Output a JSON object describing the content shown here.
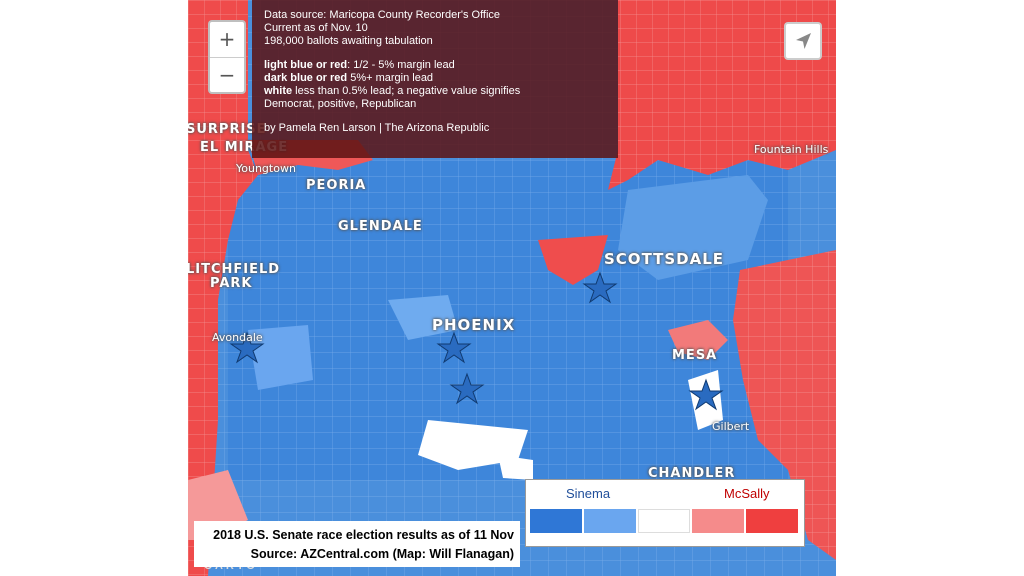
{
  "map": {
    "zoom_in_label": "+",
    "zoom_out_label": "−",
    "locate_icon": "navigation-arrow-icon",
    "attribution": "CARTO",
    "colors": {
      "dark_blue": "#2f77d6",
      "light_blue": "#6aa6ef",
      "white": "#ffffff",
      "light_red": "#f58b8b",
      "dark_red": "#ef3f3f",
      "star": "#2a6bc0"
    },
    "cities": {
      "surprise": "SURPRISE",
      "el_mirage": "EL MIRAGE",
      "youngtown": "Youngtown",
      "peoria": "PEORIA",
      "glendale": "GLENDALE",
      "litchfield": "LITCHFIELD",
      "park": "PARK",
      "avondale": "Avondale",
      "phoenix": "PHOENIX",
      "scottsdale": "SCOTTSDALE",
      "fountain_hills": "Fountain Hills",
      "mesa": "MESA",
      "gilbert": "Gilbert",
      "chandler": "CHANDLER"
    }
  },
  "info": {
    "line1": "Data source: Maricopa County Recorder's Office",
    "line2": "Current as of Nov. 10",
    "line3": "198,000 ballots awaiting tabulation",
    "light_bold": "light blue or red",
    "light_text": ": 1/2 - 5% margin lead",
    "dark_bold": "dark blue or red",
    "dark_text": " 5%+ margin lead",
    "white_bold": "white",
    "white_text": " less than 0.5% lead; a negative value signifies",
    "line7": "Democrat, positive, Republican",
    "byline": "by Pamela Ren Larson | The Arizona Republic"
  },
  "legend": {
    "left_label": "Sinema",
    "right_label": "McSally",
    "left_color": "#1f4e9a",
    "right_color": "#c00000"
  },
  "caption": {
    "line1": "2018 U.S. Senate race election results as of 11 Nov",
    "line2": "Source: AZCentral.com (Map: Will Flanagan)"
  }
}
